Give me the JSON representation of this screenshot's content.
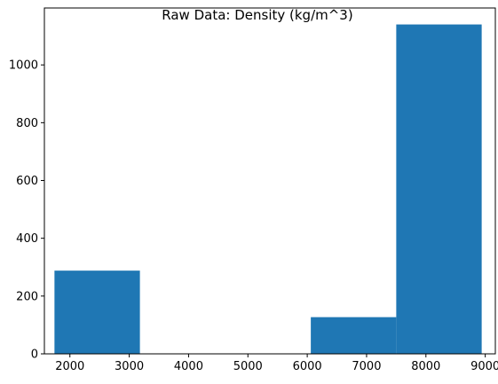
{
  "chart_data": {
    "type": "bar",
    "title": "Raw Data: Density (kg/m^3)",
    "xlabel": "",
    "ylabel": "",
    "grid": false,
    "legend": "none",
    "xlim": [
      1570,
      9170
    ],
    "ylim": [
      0,
      1197
    ],
    "xticks": [
      2000,
      3000,
      4000,
      5000,
      6000,
      7000,
      8000,
      9000
    ],
    "xtick_labels": [
      "2000",
      "3000",
      "4000",
      "5000",
      "6000",
      "7000",
      "8000",
      "9000"
    ],
    "yticks": [
      0,
      200,
      400,
      600,
      800,
      1000
    ],
    "ytick_labels": [
      "0",
      "200",
      "400",
      "600",
      "800",
      "1000"
    ],
    "bins": [
      {
        "x0": 1740,
        "x1": 3180,
        "value": 288
      },
      {
        "x0": 3180,
        "x1": 4620,
        "value": 0
      },
      {
        "x0": 4620,
        "x1": 6060,
        "value": 0
      },
      {
        "x0": 6060,
        "x1": 7500,
        "value": 127
      },
      {
        "x0": 7500,
        "x1": 8940,
        "value": 1140
      }
    ],
    "bar_color": "#1f77b4"
  }
}
